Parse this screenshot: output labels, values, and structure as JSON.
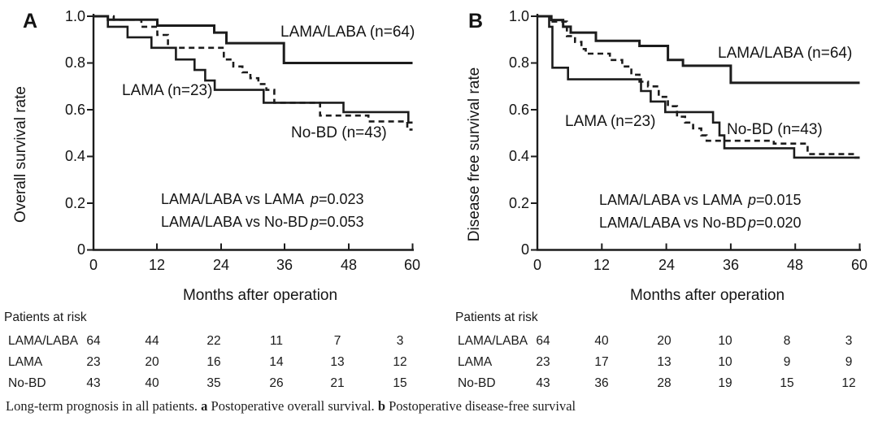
{
  "caption": {
    "prefix": "Long-term prognosis in all patients.",
    "a_marker": "a",
    "a_text": "Postoperative overall survival.",
    "b_marker": "b",
    "b_text": "Postoperative disease-free survival"
  },
  "colors": {
    "line": "#1c1c1c",
    "text": "#141414"
  },
  "chart_data": [
    {
      "type": "line",
      "subtype": "kaplan-meier-step",
      "panel_label": "A",
      "ylabel": "Overall survival rate",
      "xlabel": "Months after operation",
      "xlim": [
        0,
        60
      ],
      "ylim": [
        0,
        1.0
      ],
      "grid": false,
      "x_ticks": [
        "0",
        "12",
        "24",
        "36",
        "48",
        "60"
      ],
      "y_ticks": [
        "1.0",
        "0.8",
        "0.6",
        "0.4",
        "0.2",
        "0"
      ],
      "series": [
        {
          "name": "LAMA/LABA (n=64)",
          "line_style": "solid",
          "steps": [
            [
              0,
              1.0
            ],
            [
              2.7,
              0.985
            ],
            [
              12,
              0.96
            ],
            [
              22.7,
              0.93
            ],
            [
              25,
              0.885
            ],
            [
              35.8,
              0.8
            ],
            [
              60,
              0.8
            ]
          ]
        },
        {
          "name": "LAMA (n=23)",
          "line_style": "solid",
          "steps": [
            [
              0,
              1.0
            ],
            [
              2.7,
              0.955
            ],
            [
              6.4,
              0.91
            ],
            [
              10.9,
              0.865
            ],
            [
              15.5,
              0.815
            ],
            [
              19,
              0.77
            ],
            [
              21,
              0.725
            ],
            [
              22.8,
              0.685
            ],
            [
              32,
              0.63
            ],
            [
              47,
              0.59
            ],
            [
              59.2,
              0.545
            ],
            [
              60,
              0.545
            ]
          ]
        },
        {
          "name": "No-BD (n=43)",
          "line_style": "dashed",
          "steps": [
            [
              0,
              1.0
            ],
            [
              3.8,
              0.985
            ],
            [
              9,
              0.955
            ],
            [
              12,
              0.92
            ],
            [
              14,
              0.865
            ],
            [
              24.5,
              0.815
            ],
            [
              26.3,
              0.785
            ],
            [
              28,
              0.76
            ],
            [
              29.5,
              0.735
            ],
            [
              31,
              0.71
            ],
            [
              32.5,
              0.685
            ],
            [
              34,
              0.63
            ],
            [
              42.6,
              0.575
            ],
            [
              51.7,
              0.55
            ],
            [
              59,
              0.515
            ],
            [
              60,
              0.515
            ]
          ]
        }
      ],
      "annotations": [
        {
          "comparison": "LAMA/LABA vs LAMA",
          "p_symbol": "p",
          "p_value": "=0.023"
        },
        {
          "comparison": "LAMA/LABA vs No-BD",
          "p_symbol": "p",
          "p_value": "=0.053"
        }
      ],
      "risk_table": {
        "title": "Patients at risk",
        "time_points": [
          0,
          12,
          24,
          36,
          48,
          60
        ],
        "rows": [
          {
            "label": "LAMA/LABA",
            "counts": [
              "64",
              "44",
              "22",
              "11",
              "7",
              "3"
            ]
          },
          {
            "label": "LAMA",
            "counts": [
              "23",
              "20",
              "16",
              "14",
              "13",
              "12"
            ]
          },
          {
            "label": "No-BD",
            "counts": [
              "43",
              "40",
              "35",
              "26",
              "21",
              "15"
            ]
          }
        ]
      }
    },
    {
      "type": "line",
      "subtype": "kaplan-meier-step",
      "panel_label": "B",
      "ylabel": "Disease free survival rate",
      "xlabel": "Months after operation",
      "xlim": [
        0,
        60
      ],
      "ylim": [
        0,
        1.0
      ],
      "grid": false,
      "x_ticks": [
        "0",
        "12",
        "24",
        "36",
        "48",
        "60"
      ],
      "y_ticks": [
        "1.0",
        "0.8",
        "0.6",
        "0.4",
        "0.2",
        "0"
      ],
      "series": [
        {
          "name": "LAMA/LABA (n=64)",
          "line_style": "solid",
          "steps": [
            [
              0,
              1.0
            ],
            [
              2.6,
              0.984
            ],
            [
              4.8,
              0.955
            ],
            [
              6.2,
              0.93
            ],
            [
              10.9,
              0.895
            ],
            [
              19,
              0.873
            ],
            [
              24.3,
              0.813
            ],
            [
              27.1,
              0.788
            ],
            [
              36,
              0.715
            ],
            [
              60,
              0.715
            ]
          ]
        },
        {
          "name": "LAMA (n=23)",
          "line_style": "solid",
          "steps": [
            [
              0,
              1.0
            ],
            [
              2.2,
              0.955
            ],
            [
              2.8,
              0.78
            ],
            [
              5.7,
              0.73
            ],
            [
              19.3,
              0.68
            ],
            [
              21.1,
              0.635
            ],
            [
              23.8,
              0.59
            ],
            [
              32.7,
              0.545
            ],
            [
              33.9,
              0.49
            ],
            [
              34.8,
              0.435
            ],
            [
              47.8,
              0.395
            ],
            [
              60,
              0.395
            ]
          ]
        },
        {
          "name": "No-BD (n=43)",
          "line_style": "dashed",
          "steps": [
            [
              0,
              1.0
            ],
            [
              2.6,
              0.977
            ],
            [
              5.5,
              0.915
            ],
            [
              7,
              0.89
            ],
            [
              8.2,
              0.86
            ],
            [
              9,
              0.84
            ],
            [
              13.5,
              0.813
            ],
            [
              15.8,
              0.785
            ],
            [
              17.5,
              0.75
            ],
            [
              19,
              0.72
            ],
            [
              20.6,
              0.7
            ],
            [
              22.6,
              0.655
            ],
            [
              24.3,
              0.615
            ],
            [
              26,
              0.57
            ],
            [
              27.5,
              0.545
            ],
            [
              29,
              0.52
            ],
            [
              30.5,
              0.49
            ],
            [
              31.5,
              0.467
            ],
            [
              44,
              0.455
            ],
            [
              50.3,
              0.41
            ],
            [
              59,
              0.395
            ],
            [
              60,
              0.395
            ]
          ]
        }
      ],
      "annotations": [
        {
          "comparison": "LAMA/LABA vs LAMA",
          "p_symbol": "p",
          "p_value": "=0.015"
        },
        {
          "comparison": "LAMA/LABA vs No-BD",
          "p_symbol": "p",
          "p_value": "=0.020"
        }
      ],
      "risk_table": {
        "title": "Patients at risk",
        "time_points": [
          0,
          12,
          24,
          36,
          48,
          60
        ],
        "rows": [
          {
            "label": "LAMA/LABA",
            "counts": [
              "64",
              "40",
              "20",
              "10",
              "8",
              "3"
            ]
          },
          {
            "label": "LAMA",
            "counts": [
              "23",
              "17",
              "13",
              "10",
              "9",
              "9"
            ]
          },
          {
            "label": "No-BD",
            "counts": [
              "43",
              "36",
              "28",
              "19",
              "15",
              "12"
            ]
          }
        ]
      }
    }
  ]
}
